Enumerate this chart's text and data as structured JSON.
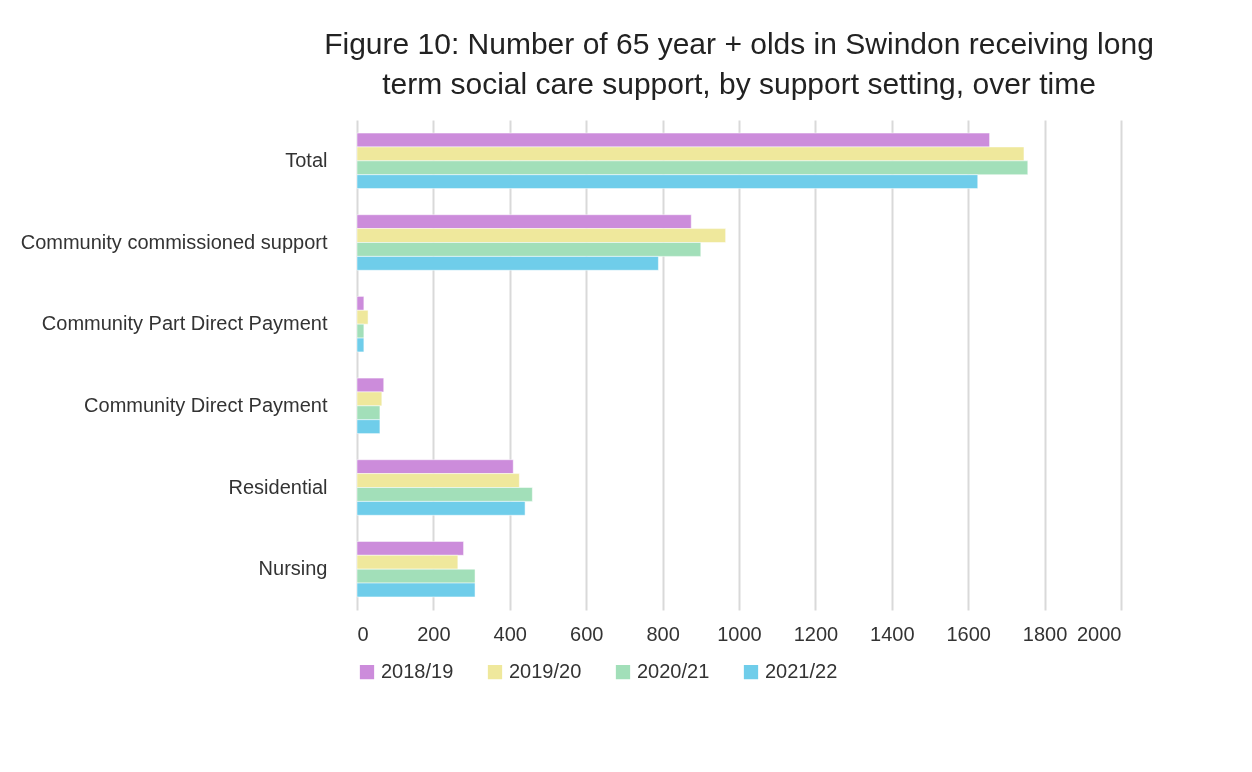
{
  "chart_data": {
    "type": "bar",
    "orientation": "horizontal",
    "title": "Figure 10: Number of 65 year + olds in Swindon receiving long term social care support, by support setting, over time",
    "categories": [
      "Total",
      "Community commissioned support",
      "Community Part Direct Payment",
      "Community Direct Payment",
      "Residential",
      "Nursing"
    ],
    "series": [
      {
        "name": "2018/19",
        "color": "#cc8cdb",
        "values": [
          1656,
          875,
          18,
          70,
          409,
          279
        ]
      },
      {
        "name": "2019/20",
        "color": "#efe89c",
        "values": [
          1746,
          965,
          29,
          65,
          425,
          264
        ]
      },
      {
        "name": "2020/21",
        "color": "#a2dfb9",
        "values": [
          1756,
          900,
          18,
          60,
          459,
          309
        ]
      },
      {
        "name": "2021/22",
        "color": "#6fcdea",
        "values": [
          1625,
          789,
          18,
          60,
          440,
          309
        ]
      }
    ],
    "xlim": [
      0,
      2000
    ],
    "xticks": [
      0,
      200,
      400,
      600,
      800,
      1000,
      1200,
      1400,
      1600,
      1800,
      2000
    ],
    "grid": "x",
    "legend": "bottom"
  }
}
